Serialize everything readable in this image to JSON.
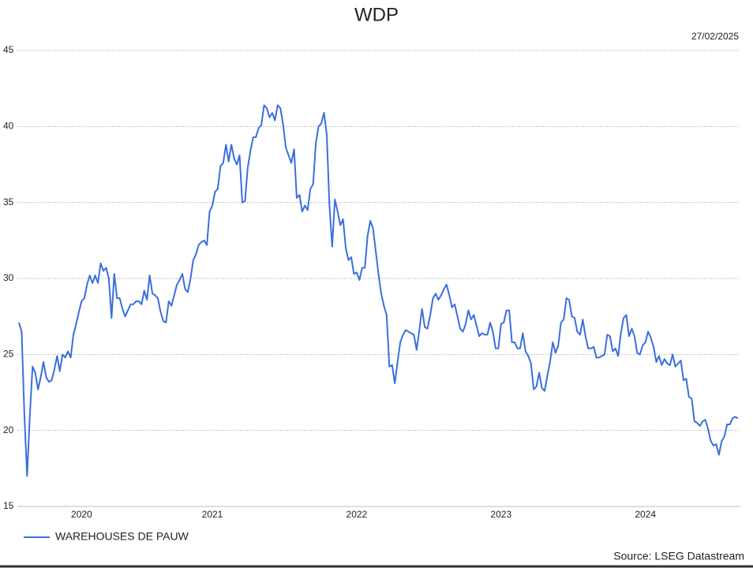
{
  "chart_data": {
    "type": "line",
    "title": "WDP",
    "date_label": "27/02/2025",
    "source": "Source: LSEG Datastream",
    "categories": [
      null,
      null,
      null,
      null,
      null,
      null,
      null,
      null,
      null,
      null,
      null,
      null,
      null,
      null,
      null,
      null,
      null,
      null,
      null,
      null,
      null,
      null,
      null,
      "2020",
      null,
      null,
      null,
      null,
      null,
      null,
      null,
      null,
      null,
      null,
      null,
      null,
      null,
      null,
      null,
      null,
      null,
      null,
      null,
      null,
      null,
      null,
      null,
      null,
      null,
      null,
      null,
      null,
      null,
      null,
      null,
      null,
      null,
      null,
      null,
      null,
      null,
      null,
      null,
      null,
      null,
      null,
      null,
      null,
      null,
      null,
      null,
      "2021",
      null,
      null,
      null,
      null,
      null,
      null,
      null,
      null,
      null,
      null,
      null,
      null,
      null,
      null,
      null,
      null,
      null,
      null,
      null,
      null,
      null,
      null,
      null,
      null,
      null,
      null,
      null,
      null,
      null,
      null,
      null,
      null,
      null,
      null,
      null,
      null,
      null,
      null,
      null,
      null,
      null,
      null,
      null,
      null,
      null,
      null,
      null,
      null,
      null,
      null,
      null,
      null,
      "2022",
      null,
      null,
      null,
      null,
      null,
      null,
      null,
      null,
      null,
      null,
      null,
      null,
      null,
      null,
      null,
      null,
      null,
      null,
      null,
      null,
      null,
      null,
      null,
      null,
      null,
      null,
      null,
      null,
      null,
      null,
      null,
      null,
      null,
      null,
      null,
      null,
      null,
      null,
      null,
      null,
      null,
      null,
      null,
      null,
      null,
      null,
      null,
      null,
      null,
      null,
      null,
      null,
      "2023",
      null,
      null,
      null,
      null,
      null,
      null,
      null,
      null,
      null,
      null,
      null,
      null,
      null,
      null,
      null,
      null,
      null,
      null,
      null,
      null,
      null,
      null,
      null,
      null,
      null,
      null,
      null,
      null,
      null,
      null,
      null,
      null,
      null,
      null,
      null,
      null,
      null,
      null,
      null,
      null,
      null,
      null,
      null,
      null,
      null,
      null,
      null,
      null,
      null,
      null,
      null,
      null,
      "2024",
      null,
      null,
      null,
      null,
      null,
      null,
      null,
      null,
      null,
      null,
      null,
      null,
      null,
      null,
      null,
      null,
      null,
      null,
      null,
      null,
      null,
      null,
      null,
      null,
      null,
      null,
      null,
      null,
      null,
      null,
      null,
      null,
      null,
      null
    ],
    "series": [
      {
        "name": "WAREHOUSES DE PAUW",
        "color": "#3b6fdc",
        "values": [
          27.1,
          26.5,
          21,
          17,
          21,
          24.2,
          23.8,
          22.7,
          23.5,
          24.5,
          23.5,
          23.2,
          23.3,
          24,
          24.9,
          23.9,
          25,
          24.8,
          25.2,
          24.8,
          26.3,
          27,
          27.8,
          28.5,
          28.7,
          29.6,
          30.2,
          29.7,
          30.2,
          29.7,
          31,
          30.5,
          30.7,
          30,
          27.4,
          30.3,
          28.7,
          28.7,
          28,
          27.5,
          27.9,
          28.3,
          28.3,
          28.5,
          28.5,
          28.3,
          29.2,
          28.6,
          30.2,
          29,
          28.9,
          28.7,
          27.8,
          27.2,
          27.1,
          28.5,
          28.2,
          28.9,
          29.6,
          29.9,
          30.3,
          29.3,
          29.1,
          30,
          31.2,
          31.6,
          32.2,
          32.4,
          32.5,
          32.2,
          34.4,
          34.8,
          35.7,
          35.9,
          37.4,
          37.6,
          38.8,
          37.7,
          38.8,
          37.9,
          37.5,
          38.1,
          35,
          35.1,
          37.3,
          38.4,
          39.3,
          39.3,
          39.9,
          40.1,
          41.4,
          41.2,
          40.6,
          40.9,
          40.4,
          41.4,
          41.2,
          40.1,
          38.6,
          38.1,
          37.6,
          38.5,
          35.3,
          35.5,
          34.4,
          34.8,
          34.5,
          35.9,
          36.2,
          38.9,
          40,
          40.2,
          40.9,
          39.5,
          34.8,
          32.1,
          35.2,
          34.4,
          33.5,
          33.9,
          32,
          31.2,
          31.4,
          30.3,
          30.4,
          29.9,
          30.7,
          30.7,
          32.8,
          33.8,
          33.3,
          31.8,
          30.3,
          29,
          28.2,
          27.6,
          24.2,
          24.3,
          23.1,
          24.5,
          25.8,
          26.3,
          26.6,
          26.5,
          26.4,
          26.3,
          25.3,
          26.6,
          28,
          26.8,
          26.7,
          27.6,
          28.7,
          29,
          28.6,
          28.9,
          29.3,
          29.6,
          28.9,
          28.1,
          28.3,
          27.5,
          26.7,
          26.5,
          27,
          27.9,
          27.3,
          27.6,
          26.9,
          26.2,
          26.4,
          26.3,
          26.3,
          27.1,
          26.5,
          25.4,
          25.4,
          27,
          27.1,
          27.9,
          27.9,
          25.8,
          25.8,
          25.4,
          25.4,
          26.4,
          25.2,
          24.9,
          24.4,
          22.7,
          22.9,
          23.8,
          22.8,
          22.6,
          23.6,
          24.5,
          25.8,
          25.1,
          25.6,
          27.1,
          27.3,
          28.7,
          28.6,
          27.5,
          27.4,
          26.5,
          26.3,
          27.3,
          26.2,
          25.4,
          25.4,
          25.5,
          24.8,
          24.8,
          24.9,
          25,
          26.3,
          26.2,
          25.2,
          25.4,
          24.9,
          26.4,
          27.4,
          27.6,
          26.2,
          26.7,
          26.2,
          25.1,
          25,
          25.6,
          25.8,
          26.5,
          26.1,
          25.5,
          24.5,
          24.9,
          24.3,
          24.7,
          24.4,
          24.3,
          25,
          24.2,
          24.4,
          24.6,
          23.3,
          23.4,
          22.2,
          22.1,
          20.6,
          20.5,
          20.3,
          20.6,
          20.7,
          20.1,
          19.3,
          19,
          19.1,
          18.4,
          19.3,
          19.6,
          20.4,
          20.4,
          20.8,
          20.9,
          20.8
        ]
      }
    ],
    "ylim": [
      15,
      45
    ],
    "yticks": [
      15,
      20,
      25,
      30,
      35,
      40,
      45
    ],
    "grid": true
  }
}
